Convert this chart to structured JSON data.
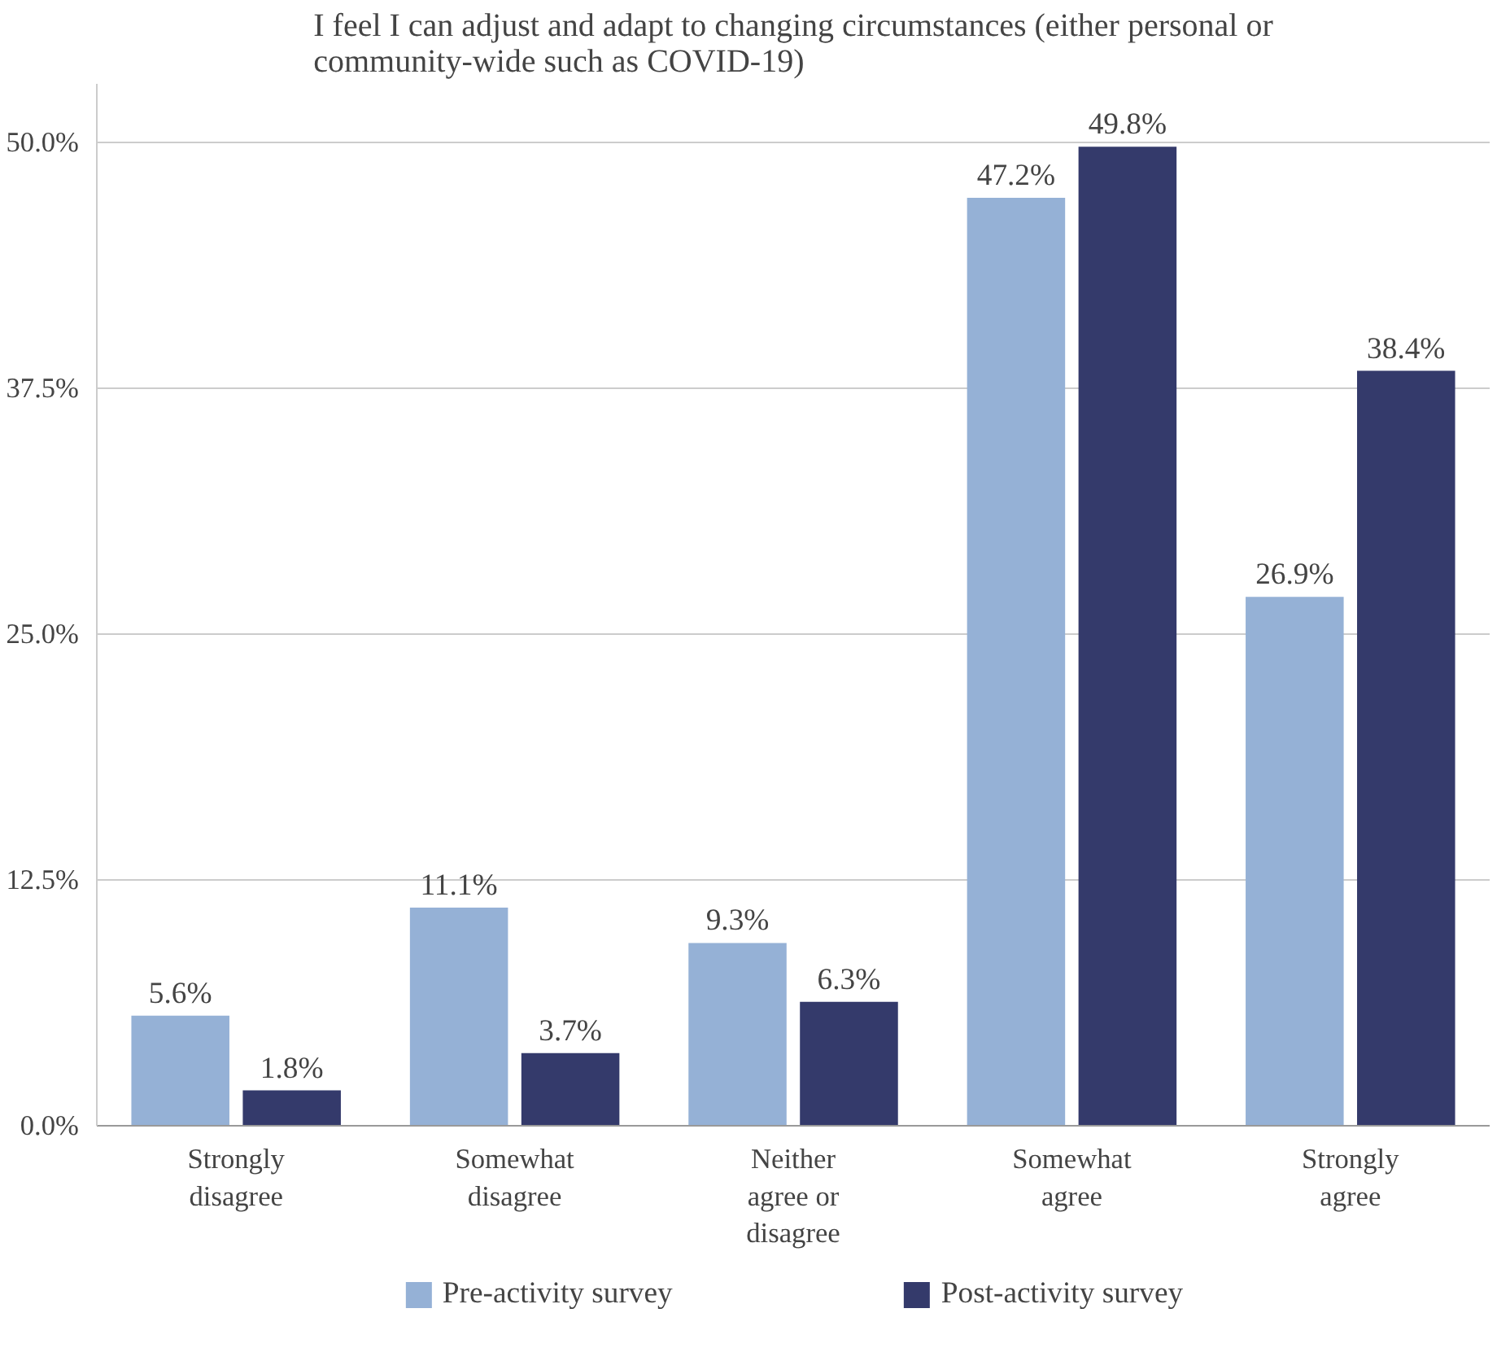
{
  "chart_data": {
    "type": "bar",
    "title": "I feel I can adjust and adapt to changing circumstances (either personal or\ncommunity-wide such as COVID-19)",
    "categories": [
      "Strongly\ndisagree",
      "Somewhat\ndisagree",
      "Neither\nagree or\ndisagree",
      "Somewhat\nagree",
      "Strongly\nagree"
    ],
    "series": [
      {
        "name": "Pre-activity survey",
        "color": "#95b1d6",
        "values": [
          5.6,
          11.1,
          9.3,
          47.2,
          26.9
        ],
        "value_labels": [
          "5.6%",
          "11.1%",
          "9.3%",
          "47.2%",
          "26.9%"
        ]
      },
      {
        "name": "Post-activity survey",
        "color": "#343a6b",
        "values": [
          1.8,
          3.7,
          6.3,
          49.8,
          38.4
        ],
        "value_labels": [
          "1.8%",
          "3.7%",
          "6.3%",
          "49.8%",
          "38.4%"
        ]
      }
    ],
    "ylim": [
      0,
      53
    ],
    "yticks": [
      {
        "value": 0,
        "label": "0.0%"
      },
      {
        "value": 12.5,
        "label": "12.5%"
      },
      {
        "value": 25,
        "label": "25.0%"
      },
      {
        "value": 37.5,
        "label": "37.5%"
      },
      {
        "value": 50,
        "label": "50.0%"
      }
    ],
    "grid": "y",
    "legend": "bottom"
  }
}
